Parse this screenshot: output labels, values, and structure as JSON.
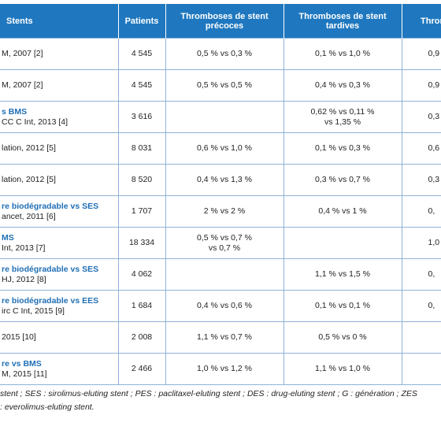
{
  "table": {
    "header": [
      "Stents",
      "Patients",
      "Thromboses de stent précoces",
      "Thromboses de stent tardives",
      "Thromb tr"
    ],
    "rows": [
      {
        "ref": "M, 2007 [2]",
        "patients": "4 545",
        "early": [
          "0,5 % vs 0,3 %"
        ],
        "late": [
          "0,1 % vs 1,0 %"
        ],
        "other": "0,9"
      },
      {
        "ref": "M, 2007 [2]",
        "patients": "4 545",
        "early": [
          "0,5 % vs 0,5 %"
        ],
        "late": [
          "0,4 % vs 0,3 %"
        ],
        "other": "0,9"
      },
      {
        "kind": "s BMS",
        "ref": "CC C Int, 2013 [4]",
        "patients": "3 616",
        "late": [
          "0,62 % vs 0,11 %",
          "vs 1,35 %"
        ],
        "other": "0,3"
      },
      {
        "ref": "lation, 2012 [5]",
        "patients": "8 031",
        "early": [
          "0,6 % vs 1,0 %"
        ],
        "late": [
          "0,1 % vs 0,3 %"
        ],
        "other": "0,6"
      },
      {
        "ref": "lation, 2012 [5]",
        "patients": "8 520",
        "early": [
          "0,4 % vs 1,3 %"
        ],
        "late": [
          "0,3 % vs 0,7 %"
        ],
        "other": "0,3"
      },
      {
        "kind": "re biodégradable vs SES",
        "ref": "ancet, 2011 [6]",
        "patients": "1 707",
        "early": [
          "2 % vs 2 %"
        ],
        "late": [
          "0,4 % vs 1 %"
        ],
        "other": "0,"
      },
      {
        "kind": "MS",
        "ref": "Int, 2013 [7]",
        "patients": "18 334",
        "early": [
          "0,5 % vs 0,7 %",
          "vs 0,7 %"
        ],
        "other": "1,0"
      },
      {
        "kind": "re biodégradable vs SES",
        "ref": "HJ, 2012 [8]",
        "patients": "4 062",
        "late": [
          "1,1 % vs 1,5 %"
        ],
        "other": "0,"
      },
      {
        "kind": "re biodégradable vs EES",
        "ref": "irc C Int, 2015 [9]",
        "patients": "1 684",
        "early": [
          "0,4 % vs 0,6 %"
        ],
        "late": [
          "0,1 % vs 0,1 %"
        ],
        "other": "0,"
      },
      {
        "ref": "2015 [10]",
        "patients": "2 008",
        "early": [
          "1,1 % vs 0,7 %"
        ],
        "late": [
          "0,5 % vs 0 %"
        ]
      },
      {
        "kind": "re vs BMS",
        "ref": "M, 2015 [11]",
        "patients": "2 466",
        "early": [
          "1,0 % vs 1,2 %"
        ],
        "late": [
          "1,1 % vs 1,0 %"
        ]
      }
    ],
    "footnote": [
      "stent ; SES : sirolimus-eluting stent ; PES : paclitaxel-eluting stent ; DES : drug-eluting stent ; G : génération ; ZES",
      ": everolimus-eluting stent."
    ]
  }
}
